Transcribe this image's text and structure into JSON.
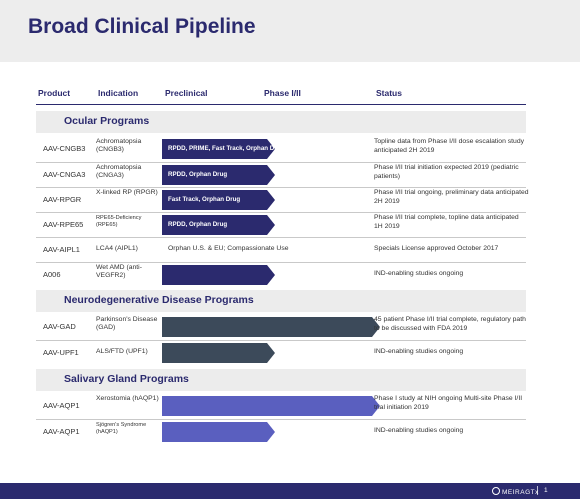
{
  "title": "Broad Clinical Pipeline",
  "columns": {
    "product": "Product",
    "indication": "Indication",
    "preclinical": "Preclinical",
    "phase": "Phase I/II",
    "status": "Status"
  },
  "sections": {
    "ocular": "Ocular Programs",
    "neuro": "Neurodegenerative Disease Programs",
    "salivary": "Salivary Gland Programs"
  },
  "rows": [
    {
      "product": "AAV-CNGB3",
      "indication": "Achromatopsia (CNGB3)",
      "bar_label": "RPDD, PRIME, Fast Track, Orphan Drug",
      "progress": 0.52,
      "color": "#2b2a6e",
      "status": "Topline data from Phase I/II dose escalation study anticipated 2H 2019"
    },
    {
      "product": "AAV-CNGA3",
      "indication": "Achromatopsia (CNGA3)",
      "bar_label": "RPDD, Orphan Drug",
      "progress": 0.52,
      "color": "#2b2a6e",
      "status": "Phase I/II trial initiation expected 2019 (pediatric patients)"
    },
    {
      "product": "AAV-RPGR",
      "indication": "X-linked RP (RPGR)",
      "bar_label": "Fast Track, Orphan Drug",
      "progress": 0.52,
      "color": "#2b2a6e",
      "status": "Phase I/II trial ongoing, preliminary data anticipated 2H 2019"
    },
    {
      "product": "AAV-RPE65",
      "indication": "RPE65-Deficiency (RPE65)",
      "bar_label": "RPDD, Orphan Drug",
      "progress": 0.52,
      "color": "#2b2a6e",
      "status": "Phase I/II trial complete, topline data anticipated 1H 2019"
    },
    {
      "product": "AAV-AIPL1",
      "indication": "LCA4 (AIPL1)",
      "plain_text": "Orphan U.S. & EU; Compassionate Use",
      "status": "Specials License approved October 2017"
    },
    {
      "product": "A006",
      "indication": "Wet AMD (anti-VEGFR2)",
      "bar_label": "",
      "progress": 0.52,
      "color": "#2b2a6e",
      "status": "IND-enabling studies ongoing"
    },
    {
      "product": "AAV-GAD",
      "indication": "Parkinson's Disease (GAD)",
      "bar_label": "",
      "progress": 1.0,
      "color": "#3c4a5a",
      "status": "45 patient Phase I/II trial complete, regulatory path to be discussed with FDA 2019"
    },
    {
      "product": "AAV-UPF1",
      "indication": "ALS/FTD (UPF1)",
      "bar_label": "",
      "progress": 0.52,
      "color": "#3c4a5a",
      "status": "IND-enabling studies ongoing"
    },
    {
      "product": "AAV-AQP1",
      "indication": "Xerostomia (hAQP1)",
      "bar_label": "",
      "progress": 1.0,
      "color": "#5a5fbf",
      "status": "Phase I study at NIH ongoing Multi-site Phase I/II trial initiation 2019"
    },
    {
      "product": "AAV-AQP1",
      "indication": "Sjögren's Syndrome (hAQP1)",
      "bar_label": "",
      "progress": 0.52,
      "color": "#5a5fbf",
      "status": "IND-enabling studies ongoing"
    }
  ],
  "footer": {
    "logo": "MEIRAGTx",
    "page": "1"
  }
}
